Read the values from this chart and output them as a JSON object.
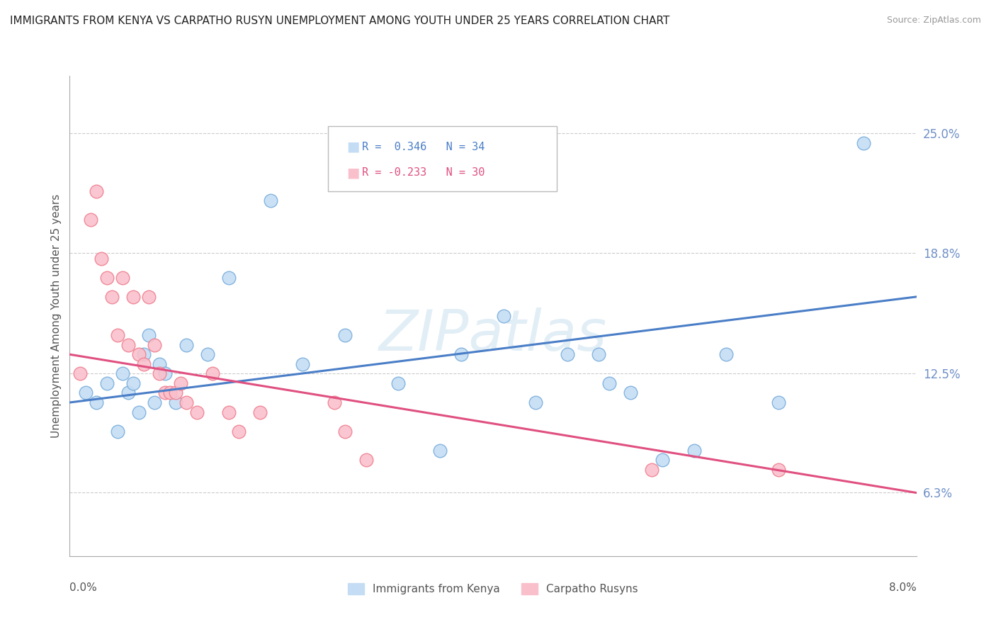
{
  "title": "IMMIGRANTS FROM KENYA VS CARPATHO RUSYN UNEMPLOYMENT AMONG YOUTH UNDER 25 YEARS CORRELATION CHART",
  "source": "Source: ZipAtlas.com",
  "ylabel": "Unemployment Among Youth under 25 years",
  "watermark": "ZIPatlas",
  "legend_labels": [
    "Immigrants from Kenya",
    "Carpatho Rusyns"
  ],
  "yticks": [
    6.3,
    12.5,
    18.8,
    25.0
  ],
  "xmin": 0.0,
  "xmax": 8.0,
  "ymin": 3.0,
  "ymax": 28.0,
  "blue_R": 0.346,
  "blue_N": 34,
  "pink_R": -0.233,
  "pink_N": 30,
  "blue_scatter_x": [
    0.15,
    0.25,
    0.35,
    0.45,
    0.5,
    0.55,
    0.6,
    0.65,
    0.7,
    0.75,
    0.8,
    0.85,
    0.9,
    1.0,
    1.1,
    1.3,
    1.5,
    1.9,
    2.2,
    2.6,
    3.1,
    3.5,
    3.7,
    4.1,
    4.4,
    4.7,
    5.0,
    5.1,
    5.3,
    5.6,
    5.9,
    6.2,
    6.7,
    7.5
  ],
  "blue_scatter_y": [
    11.5,
    11.0,
    12.0,
    9.5,
    12.5,
    11.5,
    12.0,
    10.5,
    13.5,
    14.5,
    11.0,
    13.0,
    12.5,
    11.0,
    14.0,
    13.5,
    17.5,
    21.5,
    13.0,
    14.5,
    12.0,
    8.5,
    13.5,
    15.5,
    11.0,
    13.5,
    13.5,
    12.0,
    11.5,
    8.0,
    8.5,
    13.5,
    11.0,
    24.5
  ],
  "pink_scatter_x": [
    0.1,
    0.2,
    0.25,
    0.3,
    0.35,
    0.4,
    0.45,
    0.5,
    0.55,
    0.6,
    0.65,
    0.7,
    0.75,
    0.8,
    0.85,
    0.9,
    0.95,
    1.0,
    1.05,
    1.1,
    1.2,
    1.35,
    1.5,
    1.6,
    1.8,
    2.5,
    2.6,
    2.8,
    5.5,
    6.7
  ],
  "pink_scatter_y": [
    12.5,
    20.5,
    22.0,
    18.5,
    17.5,
    16.5,
    14.5,
    17.5,
    14.0,
    16.5,
    13.5,
    13.0,
    16.5,
    14.0,
    12.5,
    11.5,
    11.5,
    11.5,
    12.0,
    11.0,
    10.5,
    12.5,
    10.5,
    9.5,
    10.5,
    11.0,
    9.5,
    8.0,
    7.5,
    7.5
  ],
  "blue_line_color": "#4a7ec7",
  "pink_line_color": "#e05080",
  "blue_scatter_facecolor": "#c5ddf4",
  "blue_scatter_edgecolor": "#7aaedc",
  "pink_scatter_facecolor": "#f9c0cc",
  "pink_scatter_edgecolor": "#f08090",
  "background_color": "#ffffff",
  "grid_color": "#cccccc",
  "right_label_color": "#7090c8",
  "title_color": "#333333"
}
